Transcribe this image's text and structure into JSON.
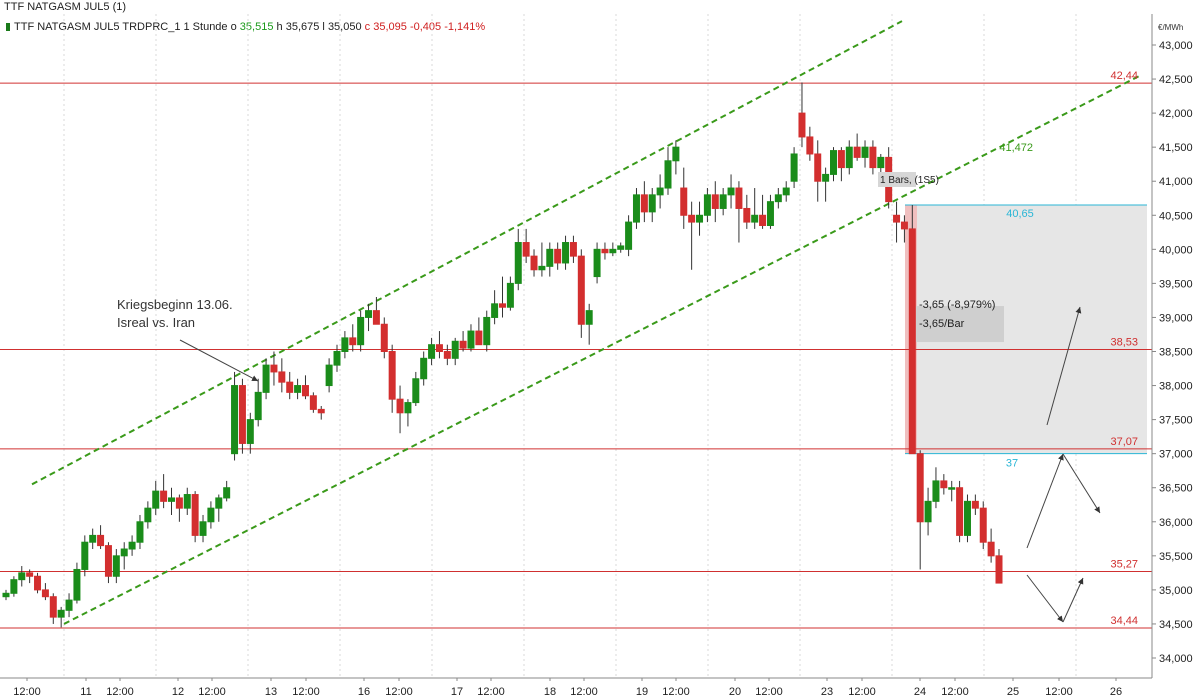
{
  "title": "TTF NATGASM JUL5 (1)",
  "ohlc": {
    "instrument": "TTF NATGASM JUL5 TRDPRC_1 1 Stunde",
    "o_label": "o",
    "o_value": "35,515",
    "h_label": "h",
    "h_value": "35,675",
    "l_label": "l",
    "l_value": "35,050",
    "c_label": "c",
    "c_value": "35,095",
    "change": "-0,405",
    "change_pct": "-1,141%"
  },
  "colors": {
    "up": "#1a8c1a",
    "down": "#d32f2f",
    "hline": "#d03030",
    "channel": "#3a9a1a",
    "cyan": "#29b6d6",
    "box": "#e6e6e6"
  },
  "annotations": {
    "war_line1": "Kriegsbeginn 13.06.",
    "war_line2": "Isreal vs. Iran",
    "bars_label": "1 Bars, (1S5)",
    "move_pct": "-3,65 (-8,979%)",
    "move_per_bar": "-3,65/Bar",
    "channel_value": "41,472",
    "cyan_top_value": "40,65",
    "cyan_bottom_value": "37"
  },
  "chart_data": {
    "type": "candlestick",
    "title": "TTF NATGASM JUL5 (1)",
    "unit": "€/MWh",
    "ylim": [
      33.6,
      43.4
    ],
    "y_ticks": [
      "34,000",
      "34,500",
      "35,000",
      "35,500",
      "36,000",
      "36,500",
      "37,000",
      "37,500",
      "38,000",
      "38,500",
      "39,000",
      "39,500",
      "40,000",
      "40,500",
      "41,000",
      "41,500",
      "42,000",
      "42,500",
      "43,000"
    ],
    "x_labels": [
      "12:00",
      "11",
      "12:00",
      "12",
      "12:00",
      "13",
      "12:00",
      "16",
      "12:00",
      "17",
      "12:00",
      "18",
      "12:00",
      "19",
      "12:00",
      "20",
      "12:00",
      "23",
      "12:00",
      "24",
      "12:00",
      "25",
      "12:00",
      "26"
    ],
    "hlines": [
      {
        "value": 42.44,
        "label": "42,44"
      },
      {
        "value": 38.53,
        "label": "38,53"
      },
      {
        "value": 37.07,
        "label": "37,07"
      },
      {
        "value": 35.27,
        "label": "35,27"
      },
      {
        "value": 34.44,
        "label": "34,44"
      }
    ],
    "candles": [
      [
        34.9,
        35.0,
        34.85,
        34.95
      ],
      [
        34.95,
        35.2,
        34.9,
        35.15
      ],
      [
        35.15,
        35.35,
        35.05,
        35.25
      ],
      [
        35.25,
        35.3,
        35.1,
        35.2
      ],
      [
        35.2,
        35.25,
        34.95,
        35.0
      ],
      [
        35.0,
        35.1,
        34.85,
        34.9
      ],
      [
        34.9,
        34.95,
        34.5,
        34.6
      ],
      [
        34.6,
        34.75,
        34.45,
        34.7
      ],
      [
        34.7,
        34.95,
        34.6,
        34.85
      ],
      [
        34.85,
        35.4,
        34.8,
        35.3
      ],
      [
        35.3,
        35.8,
        35.2,
        35.7
      ],
      [
        35.7,
        35.9,
        35.6,
        35.8
      ],
      [
        35.8,
        35.95,
        35.6,
        35.65
      ],
      [
        35.65,
        35.7,
        35.1,
        35.2
      ],
      [
        35.2,
        35.6,
        35.1,
        35.5
      ],
      [
        35.5,
        35.7,
        35.3,
        35.6
      ],
      [
        35.6,
        35.8,
        35.5,
        35.7
      ],
      [
        35.7,
        36.1,
        35.6,
        36.0
      ],
      [
        36.0,
        36.3,
        35.9,
        36.2
      ],
      [
        36.2,
        36.6,
        36.1,
        36.45
      ],
      [
        36.45,
        36.7,
        36.2,
        36.3
      ],
      [
        36.3,
        36.5,
        36.1,
        36.35
      ],
      [
        36.35,
        36.4,
        36.0,
        36.2
      ],
      [
        36.2,
        36.5,
        36.1,
        36.4
      ],
      [
        36.4,
        36.45,
        35.7,
        35.8
      ],
      [
        35.8,
        36.1,
        35.7,
        36.0
      ],
      [
        36.0,
        36.3,
        35.9,
        36.2
      ],
      [
        36.2,
        36.4,
        36.0,
        36.35
      ],
      [
        36.35,
        36.6,
        36.3,
        36.5
      ],
      [
        37.0,
        38.2,
        36.9,
        38.0
      ],
      [
        38.0,
        38.1,
        37.0,
        37.15
      ],
      [
        37.15,
        37.6,
        37.0,
        37.5
      ],
      [
        37.5,
        38.1,
        37.4,
        37.9
      ],
      [
        37.9,
        38.4,
        37.8,
        38.3
      ],
      [
        38.3,
        38.5,
        38.0,
        38.2
      ],
      [
        38.2,
        38.4,
        37.9,
        38.05
      ],
      [
        38.05,
        38.2,
        37.8,
        37.9
      ],
      [
        37.9,
        38.1,
        37.8,
        38.0
      ],
      [
        38.0,
        38.15,
        37.8,
        37.85
      ],
      [
        37.85,
        37.9,
        37.6,
        37.65
      ],
      [
        37.65,
        37.7,
        37.5,
        37.6
      ],
      [
        38.0,
        38.4,
        37.9,
        38.3
      ],
      [
        38.3,
        38.6,
        38.2,
        38.5
      ],
      [
        38.5,
        38.8,
        38.4,
        38.7
      ],
      [
        38.7,
        38.9,
        38.5,
        38.6
      ],
      [
        38.6,
        39.1,
        38.5,
        39.0
      ],
      [
        39.0,
        39.2,
        38.8,
        39.1
      ],
      [
        39.1,
        39.3,
        38.9,
        38.9
      ],
      [
        38.9,
        39.0,
        38.4,
        38.5
      ],
      [
        38.5,
        38.6,
        37.6,
        37.8
      ],
      [
        37.8,
        38.0,
        37.3,
        37.6
      ],
      [
        37.6,
        37.8,
        37.4,
        37.75
      ],
      [
        37.75,
        38.2,
        37.7,
        38.1
      ],
      [
        38.1,
        38.5,
        38.0,
        38.4
      ],
      [
        38.4,
        38.7,
        38.3,
        38.6
      ],
      [
        38.6,
        38.8,
        38.4,
        38.5
      ],
      [
        38.5,
        38.6,
        38.3,
        38.4
      ],
      [
        38.4,
        38.7,
        38.3,
        38.65
      ],
      [
        38.65,
        38.8,
        38.5,
        38.55
      ],
      [
        38.55,
        38.9,
        38.5,
        38.8
      ],
      [
        38.8,
        39.0,
        38.6,
        38.6
      ],
      [
        38.6,
        39.1,
        38.5,
        39.0
      ],
      [
        39.0,
        39.4,
        38.9,
        39.2
      ],
      [
        39.2,
        39.6,
        39.0,
        39.15
      ],
      [
        39.15,
        39.6,
        39.1,
        39.5
      ],
      [
        39.5,
        40.3,
        39.4,
        40.1
      ],
      [
        40.1,
        40.3,
        39.8,
        39.9
      ],
      [
        39.9,
        40.0,
        39.6,
        39.7
      ],
      [
        39.7,
        40.1,
        39.6,
        39.75
      ],
      [
        39.75,
        40.1,
        39.6,
        40.0
      ],
      [
        40.0,
        40.1,
        39.7,
        39.8
      ],
      [
        39.8,
        40.2,
        39.7,
        40.1
      ],
      [
        40.1,
        40.2,
        39.8,
        39.9
      ],
      [
        39.9,
        40.0,
        38.7,
        38.9
      ],
      [
        38.9,
        39.2,
        38.6,
        39.1
      ],
      [
        39.6,
        40.1,
        39.5,
        40.0
      ],
      [
        40.0,
        40.1,
        39.85,
        39.95
      ],
      [
        39.95,
        40.1,
        39.9,
        40.0
      ],
      [
        40.0,
        40.1,
        39.95,
        40.05
      ],
      [
        40.0,
        40.5,
        39.9,
        40.4
      ],
      [
        40.4,
        40.9,
        40.3,
        40.8
      ],
      [
        40.8,
        41.0,
        40.4,
        40.55
      ],
      [
        40.55,
        40.9,
        40.4,
        40.8
      ],
      [
        40.8,
        41.1,
        40.6,
        40.9
      ],
      [
        40.9,
        41.5,
        40.8,
        41.3
      ],
      [
        41.3,
        41.6,
        41.1,
        41.5
      ],
      [
        40.9,
        41.2,
        40.3,
        40.5
      ],
      [
        40.5,
        40.7,
        39.7,
        40.4
      ],
      [
        40.4,
        40.7,
        40.2,
        40.5
      ],
      [
        40.5,
        40.9,
        40.4,
        40.8
      ],
      [
        40.8,
        41.0,
        40.4,
        40.6
      ],
      [
        40.6,
        40.9,
        40.5,
        40.8
      ],
      [
        40.8,
        41.1,
        40.6,
        40.9
      ],
      [
        40.9,
        41.0,
        40.1,
        40.6
      ],
      [
        40.6,
        40.8,
        40.3,
        40.4
      ],
      [
        40.4,
        40.9,
        40.3,
        40.5
      ],
      [
        40.5,
        40.8,
        40.3,
        40.35
      ],
      [
        40.35,
        40.8,
        40.3,
        40.7
      ],
      [
        40.7,
        40.9,
        40.6,
        40.8
      ],
      [
        40.8,
        41.0,
        40.7,
        40.9
      ],
      [
        41.0,
        41.5,
        40.9,
        41.4
      ],
      [
        42.0,
        42.45,
        41.5,
        41.65
      ],
      [
        41.65,
        41.8,
        41.3,
        41.4
      ],
      [
        41.4,
        41.6,
        40.7,
        41.0
      ],
      [
        41.0,
        41.2,
        40.7,
        41.1
      ],
      [
        41.1,
        41.5,
        41.0,
        41.45
      ],
      [
        41.45,
        41.5,
        41.0,
        41.2
      ],
      [
        41.2,
        41.6,
        41.1,
        41.5
      ],
      [
        41.5,
        41.7,
        41.3,
        41.35
      ],
      [
        41.35,
        41.6,
        41.2,
        41.5
      ],
      [
        41.5,
        41.6,
        41.1,
        41.2
      ],
      [
        41.2,
        41.4,
        41.0,
        41.35
      ],
      [
        41.35,
        41.5,
        40.6,
        40.7
      ],
      [
        40.5,
        40.7,
        40.1,
        40.4
      ],
      [
        40.4,
        40.5,
        40.1,
        40.3
      ],
      [
        40.3,
        40.65,
        37.0,
        37.0
      ],
      [
        37.0,
        37.05,
        35.3,
        36.0
      ],
      [
        36.0,
        36.5,
        35.8,
        36.3
      ],
      [
        36.3,
        36.8,
        36.2,
        36.6
      ],
      [
        36.6,
        36.7,
        36.4,
        36.5
      ],
      [
        36.5,
        36.6,
        36.3,
        36.5
      ],
      [
        36.5,
        36.6,
        35.7,
        35.8
      ],
      [
        35.8,
        36.4,
        35.7,
        36.3
      ],
      [
        36.3,
        36.4,
        36.1,
        36.2
      ],
      [
        36.2,
        36.3,
        35.6,
        35.7
      ],
      [
        35.7,
        35.9,
        35.4,
        35.5
      ],
      [
        35.5,
        35.6,
        35.1,
        35.1
      ]
    ]
  }
}
